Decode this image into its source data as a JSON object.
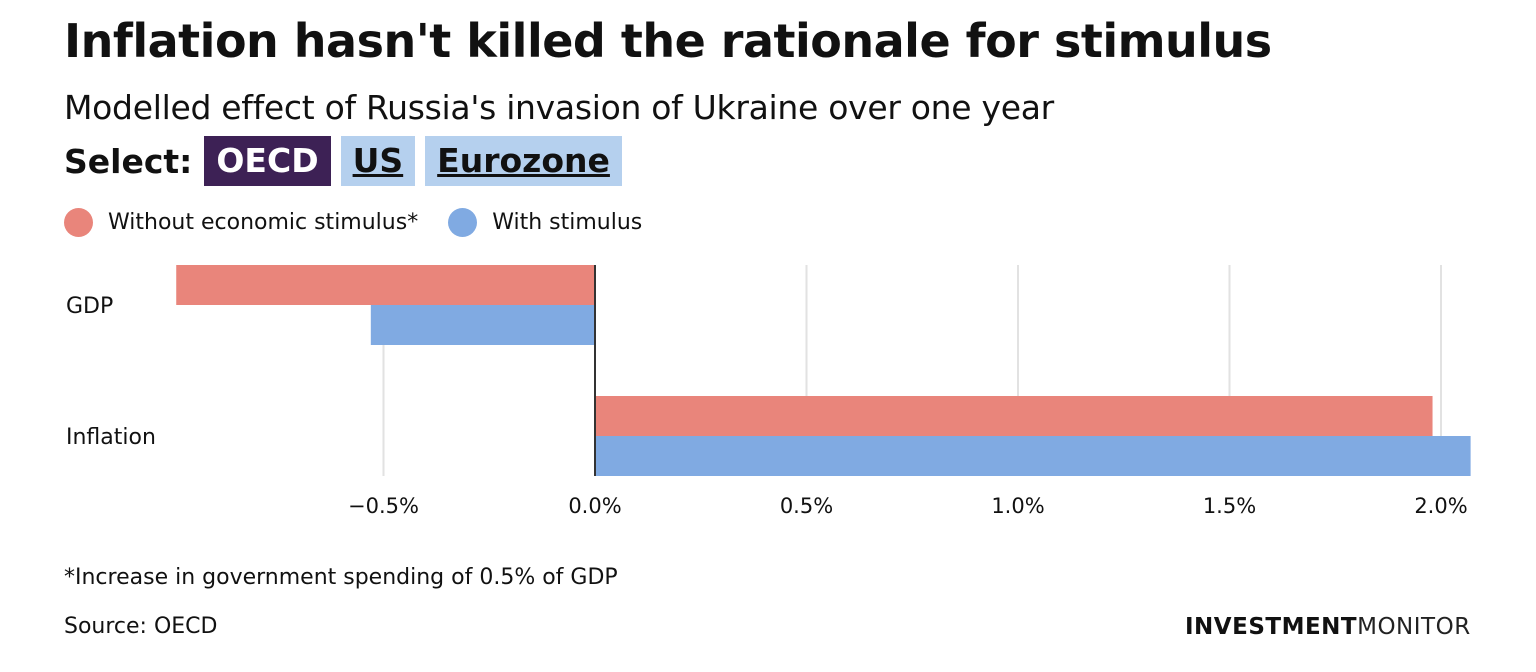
{
  "title": "Inflation hasn't killed the rationale for stimulus",
  "subtitle": "Modelled effect of Russia's invasion of Ukraine over one year",
  "selector": {
    "label": "Select:",
    "options": [
      "OECD",
      "US",
      "Eurozone"
    ],
    "selected": "OECD"
  },
  "colors": {
    "without": "#e9857b",
    "with": "#80aae2",
    "active_button": "#3d2155",
    "button": "#b5d0ee"
  },
  "chart_data": {
    "type": "bar",
    "orientation": "horizontal",
    "categories": [
      "GDP",
      "Inflation"
    ],
    "series": [
      {
        "name": "Without economic stimulus*",
        "values": [
          -0.99,
          1.98
        ],
        "color": "#e9857b"
      },
      {
        "name": "With stimulus",
        "values": [
          -0.53,
          2.07
        ],
        "color": "#80aae2"
      }
    ],
    "xlim": [
      -0.99,
      2.07
    ],
    "xticks": [
      -0.5,
      0.0,
      0.5,
      1.0,
      1.5,
      2.0
    ],
    "xtick_labels": [
      "−0.5%",
      "0.0%",
      "0.5%",
      "1.0%",
      "1.5%",
      "2.0%"
    ],
    "grid": true,
    "legend": "top-left"
  },
  "footnote": "*Increase in government spending of 0.5% of GDP",
  "source": "Source: OECD",
  "logo": {
    "bold": "INVESTMENT",
    "light": "MONITOR"
  }
}
